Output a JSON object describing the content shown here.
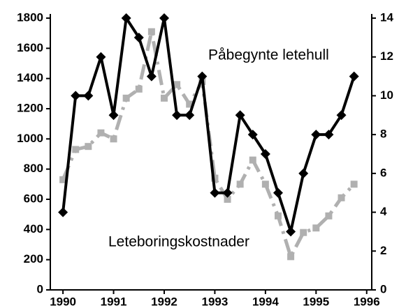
{
  "chart_data": {
    "type": "line",
    "x": [
      1990,
      1990.25,
      1990.5,
      1990.75,
      1991,
      1991.25,
      1991.5,
      1991.75,
      1992,
      1992.25,
      1992.5,
      1992.75,
      1993,
      1993.25,
      1993.5,
      1993.75,
      1994,
      1994.25,
      1994.5,
      1994.75,
      1995,
      1995.25,
      1995.5,
      1995.75
    ],
    "series": [
      {
        "name": "Påbegynte letehull",
        "color": "#000000",
        "axis": "y2",
        "marker": "diamond",
        "dash": "solid",
        "values": [
          4,
          10,
          10,
          12,
          9,
          14,
          13,
          11,
          14,
          9,
          9,
          11,
          5,
          5,
          9,
          8,
          7,
          5,
          3,
          6,
          8,
          8,
          9,
          11
        ]
      },
      {
        "name": "Leteboringskostnader",
        "color": "#b0b0b0",
        "axis": "y",
        "marker": "square",
        "dash": "dashed",
        "values": [
          730,
          930,
          950,
          1040,
          1000,
          1270,
          1330,
          1710,
          1270,
          1360,
          1230,
          1380,
          740,
          600,
          700,
          860,
          700,
          490,
          220,
          380,
          410,
          490,
          610,
          700
        ]
      }
    ],
    "xlim": [
      1989.75,
      1996.1
    ],
    "xticks": [
      1990,
      1991,
      1992,
      1993,
      1994,
      1995,
      1996
    ],
    "ylim": [
      0,
      1800
    ],
    "yticks": [
      0,
      200,
      400,
      600,
      800,
      1000,
      1200,
      1400,
      1600,
      1800
    ],
    "y2lim": [
      0,
      14
    ],
    "y2ticks": [
      0,
      2,
      4,
      6,
      8,
      10,
      12,
      14
    ]
  }
}
